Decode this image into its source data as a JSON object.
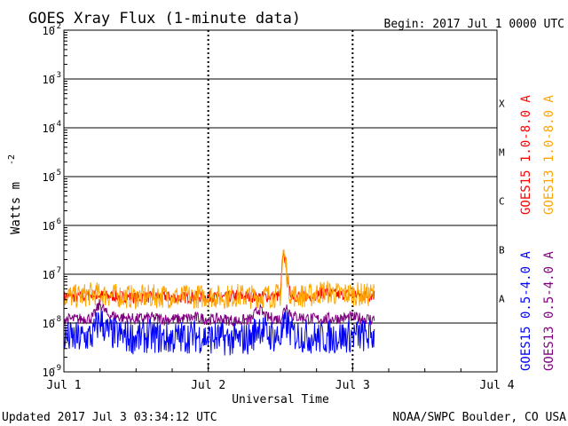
{
  "chart_data": {
    "type": "line",
    "title": "GOES Xray Flux (1-minute data)",
    "begin": "Begin:  2017 Jul 1 0000 UTC",
    "xlabel": "Universal Time",
    "ylabel_base": "Watts m",
    "ylabel_exp": "-2",
    "y_scale": "log",
    "ylim": [
      1e-09,
      0.01
    ],
    "xlim": [
      0,
      3
    ],
    "x_ticks": [
      {
        "value": 0,
        "label": "Jul 1"
      },
      {
        "value": 1,
        "label": "Jul 2"
      },
      {
        "value": 2,
        "label": "Jul 3"
      },
      {
        "value": 3,
        "label": "Jul 4"
      }
    ],
    "y_ticks": [
      {
        "value": 1e-09,
        "base": "10",
        "exp": "-9"
      },
      {
        "value": 1e-08,
        "base": "10",
        "exp": "-8"
      },
      {
        "value": 1e-07,
        "base": "10",
        "exp": "-7"
      },
      {
        "value": 1e-06,
        "base": "10",
        "exp": "-6"
      },
      {
        "value": 1e-05,
        "base": "10",
        "exp": "-5"
      },
      {
        "value": 0.0001,
        "base": "10",
        "exp": "-4"
      },
      {
        "value": 0.001,
        "base": "10",
        "exp": "-3"
      },
      {
        "value": 0.01,
        "base": "10",
        "exp": "-2"
      }
    ],
    "flare_classes": [
      {
        "label": "A",
        "value": 3.16e-08
      },
      {
        "label": "B",
        "value": 3.16e-07
      },
      {
        "label": "C",
        "value": 3.16e-06
      },
      {
        "label": "M",
        "value": 3.16e-05
      },
      {
        "label": "X",
        "value": 0.000316
      }
    ],
    "grid": {
      "horizontal": true,
      "vertical_day_lines": true
    },
    "series": [
      {
        "name": "GOES15 1.0-8.0 A",
        "color": "#ff0000",
        "x": [
          0,
          0.1,
          0.2,
          0.3,
          0.4,
          0.5,
          0.6,
          0.7,
          0.8,
          0.9,
          1.0,
          1.1,
          1.2,
          1.3,
          1.4,
          1.5,
          1.52,
          1.54,
          1.56,
          1.58,
          1.6,
          1.7,
          1.8,
          1.9,
          2.0,
          2.1,
          2.15
        ],
        "y": [
          3.5e-08,
          3.4e-08,
          3.8e-08,
          3.6e-08,
          3.5e-08,
          3.3e-08,
          3.4e-08,
          3.5e-08,
          3.3e-08,
          3.4e-08,
          3.5e-08,
          3.3e-08,
          3.6e-08,
          3.4e-08,
          3.5e-08,
          3.6e-08,
          3.2e-07,
          1.5e-07,
          4.5e-08,
          3.8e-08,
          3.6e-08,
          3.5e-08,
          4.3e-08,
          3.8e-08,
          3.9e-08,
          3.6e-08,
          3.8e-08
        ]
      },
      {
        "name": "GOES13 1.0-8.0 A",
        "color": "#ffa500",
        "x": [
          0,
          0.1,
          0.2,
          0.3,
          0.4,
          0.5,
          0.6,
          0.7,
          0.8,
          0.9,
          1.0,
          1.1,
          1.2,
          1.3,
          1.4,
          1.5,
          1.52,
          1.54,
          1.56,
          1.58,
          1.6,
          1.7,
          1.8,
          1.9,
          2.0,
          2.1,
          2.15
        ],
        "y": [
          3.6e-08,
          3.5e-08,
          4e-08,
          3.7e-08,
          3.6e-08,
          3.4e-08,
          3.5e-08,
          3.6e-08,
          3.4e-08,
          3.5e-08,
          3.6e-08,
          3.4e-08,
          3.7e-08,
          3.5e-08,
          3.6e-08,
          3.7e-08,
          3e-07,
          1.4e-07,
          4.6e-08,
          3.9e-08,
          3.7e-08,
          3.6e-08,
          4.5e-08,
          3.9e-08,
          4e-08,
          3.7e-08,
          4e-08
        ]
      },
      {
        "name": "GOES13 0.5-4.0 A",
        "color": "#800080",
        "x": [
          0,
          0.1,
          0.2,
          0.25,
          0.3,
          0.4,
          0.5,
          0.6,
          0.7,
          0.8,
          0.9,
          1.0,
          1.1,
          1.2,
          1.3,
          1.35,
          1.4,
          1.5,
          1.54,
          1.58,
          1.65,
          1.75,
          1.9,
          2.0,
          2.15
        ],
        "y": [
          1.2e-08,
          1.2e-08,
          1.3e-08,
          2.5e-08,
          1.5e-08,
          1.3e-08,
          1.2e-08,
          1.3e-08,
          1.2e-08,
          1.2e-08,
          1.3e-08,
          1.2e-08,
          1.2e-08,
          1.1e-08,
          1.2e-08,
          2e-08,
          1.3e-08,
          1.2e-08,
          2.3e-08,
          1.4e-08,
          1.3e-08,
          1.2e-08,
          1.25e-08,
          1.3e-08,
          1.2e-08
        ]
      },
      {
        "name": "GOES15 0.5-4.0 A",
        "color": "#0000ff",
        "x": [
          0,
          0.1,
          0.2,
          0.25,
          0.3,
          0.4,
          0.5,
          0.6,
          0.7,
          0.8,
          0.9,
          1.0,
          1.1,
          1.2,
          1.3,
          1.35,
          1.4,
          1.5,
          1.54,
          1.58,
          1.65,
          1.75,
          1.9,
          2.0,
          2.15
        ],
        "y": [
          5e-09,
          4.8e-09,
          5.5e-09,
          1.2e-08,
          6.5e-09,
          5.5e-09,
          5e-09,
          5.5e-09,
          4.8e-09,
          5e-09,
          5.5e-09,
          5e-09,
          4.8e-09,
          4.5e-09,
          5e-09,
          9e-09,
          6e-09,
          5e-09,
          1e-08,
          6e-09,
          5.5e-09,
          5e-09,
          5.2e-09,
          5.5e-09,
          5.5e-09
        ]
      }
    ],
    "legend_placement": "right, vertical"
  },
  "footer": {
    "updated": "Updated 2017 Jul  3 03:34:12 UTC",
    "source": "NOAA/SWPC Boulder, CO USA"
  }
}
